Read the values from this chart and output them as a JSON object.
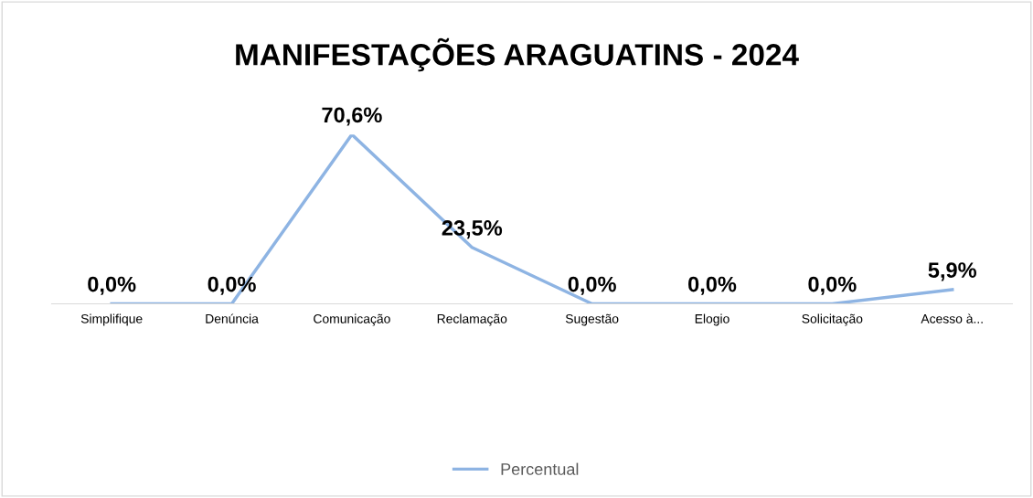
{
  "chart_data": {
    "type": "line",
    "title": "MANIFESTAÇÕES ARAGUATINS - 2024",
    "categories": [
      "Simplifique",
      "Denúncia",
      "Comunicação",
      "Reclamação",
      "Sugestão",
      "Elogio",
      "Solicitação",
      "Acesso à..."
    ],
    "series": [
      {
        "name": "Percentual",
        "color": "#8eb4e3",
        "values": [
          0.0,
          0.0,
          70.6,
          23.5,
          0.0,
          0.0,
          0.0,
          5.9
        ],
        "value_labels": [
          "0,0%",
          "0,0%",
          "70,6%",
          "23,5%",
          "0,0%",
          "0,0%",
          "0,0%",
          "5,9%"
        ]
      }
    ],
    "legend": "bottom",
    "grid": false,
    "marker": "none",
    "line_style": "solid"
  }
}
